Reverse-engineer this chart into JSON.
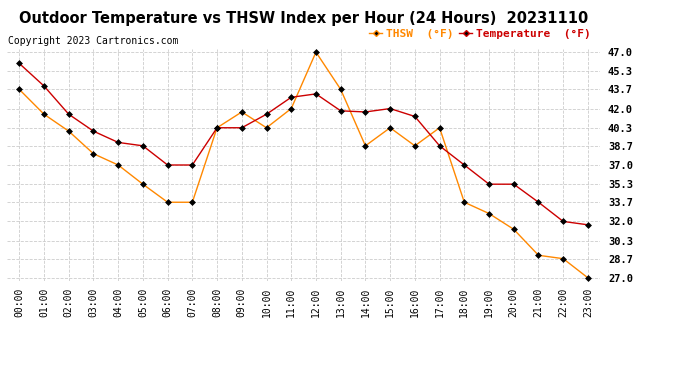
{
  "title": "Outdoor Temperature vs THSW Index per Hour (24 Hours)  20231110",
  "copyright": "Copyright 2023 Cartronics.com",
  "hours": [
    "00:00",
    "01:00",
    "02:00",
    "03:00",
    "04:00",
    "05:00",
    "06:00",
    "07:00",
    "08:00",
    "09:00",
    "10:00",
    "11:00",
    "12:00",
    "13:00",
    "14:00",
    "15:00",
    "16:00",
    "17:00",
    "18:00",
    "19:00",
    "20:00",
    "21:00",
    "22:00",
    "23:00"
  ],
  "temperature": [
    46.0,
    44.0,
    41.5,
    40.0,
    39.0,
    38.7,
    37.0,
    37.0,
    40.3,
    40.3,
    41.5,
    43.0,
    43.3,
    41.8,
    41.7,
    42.0,
    41.3,
    38.7,
    37.0,
    35.3,
    35.3,
    33.7,
    32.0,
    31.7
  ],
  "thsw": [
    43.7,
    41.5,
    40.0,
    38.0,
    37.0,
    35.3,
    33.7,
    33.7,
    40.3,
    41.7,
    40.3,
    42.0,
    47.0,
    43.7,
    38.7,
    40.3,
    38.7,
    40.3,
    33.7,
    32.7,
    31.3,
    29.0,
    28.7,
    27.0
  ],
  "ylim_min": 27.0,
  "ylim_max": 47.0,
  "yticks": [
    27.0,
    28.7,
    30.3,
    32.0,
    33.7,
    35.3,
    37.0,
    38.7,
    40.3,
    42.0,
    43.7,
    45.3,
    47.0
  ],
  "temp_color": "#cc0000",
  "thsw_color": "#ff8800",
  "legend_thsw_label": "THSW  (°F)",
  "legend_temp_label": "Temperature  (°F)",
  "background_color": "#ffffff",
  "plot_bg_color": "#ffffff",
  "grid_color": "#cccccc",
  "title_fontsize": 10.5,
  "copyright_fontsize": 7,
  "tick_fontsize": 7,
  "legend_fontsize": 8
}
